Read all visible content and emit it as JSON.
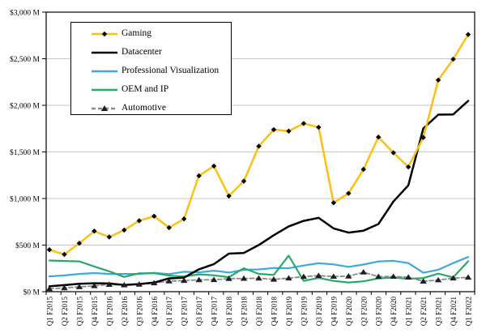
{
  "colors": {
    "background": "#FFFFFF",
    "gridline": "#C6C6C6",
    "axis": "#000000",
    "plot_border": "#000000",
    "gaming": "#FDC010",
    "datacenter": "#000000",
    "professional_visualization": "#3FA8DC",
    "oem_and_ip": "#28A966",
    "automotive": "#8A8A8A",
    "marker_dark": "#1E1E2A"
  },
  "chart_data": {
    "type": "line",
    "title": "",
    "xlabel": "",
    "ylabel": "",
    "grid": "horizontal",
    "legend_position": "inside-top-left",
    "y_axis": {
      "min": 0,
      "max": 3000,
      "step": 500,
      "tick_labels": [
        "$0 M",
        "$500 M",
        "$1,000 M",
        "$1,500 M",
        "$2,000 M",
        "$2,500 M",
        "$3,000 M"
      ]
    },
    "categories": [
      "Q1 F2015",
      "Q2 F2015",
      "Q3 F2015",
      "Q4 F2015",
      "Q1 F2016",
      "Q2 F2016",
      "Q3 F2016",
      "Q4 F2016",
      "Q1 F2017",
      "Q2 F2017",
      "Q3 F2017",
      "Q4 F2017",
      "Q1 F2018",
      "Q2 F2018",
      "Q3 F2018",
      "Q4 F2018",
      "Q1 F2019",
      "Q2 F2019",
      "Q3 F2019",
      "Q4 F2019",
      "Q1 F2020",
      "Q2 F2020",
      "Q3 F2020",
      "Q4 F2020",
      "Q1 F2021",
      "Q2 F2021",
      "Q3 F2021",
      "Q4 F2021",
      "Q1 F2022"
    ],
    "series": [
      {
        "name": "Gaming",
        "color": "#FDC010",
        "dash": "solid",
        "marker": "diamond",
        "marker_color": "#000000",
        "values": [
          450,
          400,
          520,
          650,
          587,
          661,
          761,
          810,
          687,
          781,
          1244,
          1348,
          1027,
          1186,
          1561,
          1739,
          1723,
          1805,
          1764,
          954,
          1055,
          1313,
          1659,
          1491,
          1339,
          1654,
          2271,
          2495,
          2760
        ]
      },
      {
        "name": "Datacenter",
        "color": "#000000",
        "dash": "solid",
        "marker": "none",
        "marker_color": "#000000",
        "values": [
          57,
          70,
          85,
          90,
          88,
          72,
          82,
          97,
          143,
          151,
          240,
          296,
          409,
          416,
          501,
          606,
          701,
          760,
          792,
          679,
          634,
          655,
          726,
          968,
          1141,
          1752,
          1900,
          1903,
          2048
        ]
      },
      {
        "name": "Professional Visualization",
        "color": "#3FA8DC",
        "dash": "solid",
        "marker": "none",
        "marker_color": "#3FA8DC",
        "values": [
          164,
          175,
          190,
          200,
          190,
          190,
          190,
          203,
          189,
          214,
          207,
          225,
          205,
          235,
          239,
          254,
          251,
          281,
          305,
          293,
          266,
          291,
          324,
          331,
          307,
          203,
          236,
          307,
          372
        ]
      },
      {
        "name": "OEM and IP",
        "color": "#28A966",
        "dash": "solid",
        "marker": "none",
        "marker_color": "#28A966",
        "values": [
          335,
          330,
          325,
          270,
          218,
          158,
          197,
          198,
          173,
          163,
          186,
          176,
          156,
          251,
          191,
          180,
          387,
          116,
          148,
          116,
          99,
          111,
          143,
          152,
          138,
          146,
          194,
          153,
          327
        ]
      },
      {
        "name": "Automotive",
        "color": "#8A8A8A",
        "dash": "dashed",
        "marker": "triangle",
        "marker_color": "#1E1E2A",
        "values": [
          31,
          40,
          51,
          62,
          77,
          71,
          79,
          93,
          113,
          119,
          127,
          128,
          140,
          142,
          144,
          132,
          145,
          161,
          172,
          163,
          166,
          209,
          162,
          163,
          155,
          111,
          125,
          145,
          154
        ]
      }
    ]
  }
}
